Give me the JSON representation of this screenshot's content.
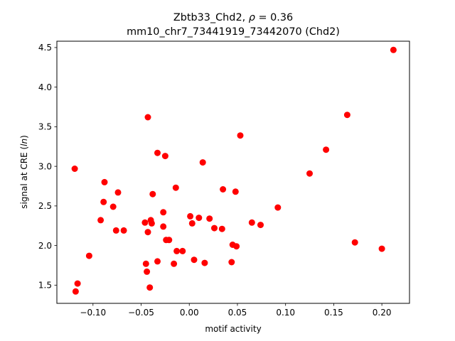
{
  "chart_data": {
    "type": "scatter",
    "title_line1_prefix": "Zbtb33_Chd2, ",
    "title_line1_rho": "ρ",
    "title_line1_suffix": " = 0.36",
    "title_line2": "mm10_chr7_73441919_73442070 (Chd2)",
    "xlabel": "motif activity",
    "ylabel_prefix": "signal at CRE (",
    "ylabel_italic": "ln",
    "ylabel_suffix": ")",
    "xlim": [
      -0.1375,
      0.2287
    ],
    "ylim": [
      1.27,
      4.58
    ],
    "xticks": [
      -0.1,
      -0.05,
      0.0,
      0.05,
      0.1,
      0.15,
      0.2
    ],
    "xtick_labels": [
      "−0.10",
      "−0.05",
      "0.00",
      "0.05",
      "0.10",
      "0.15",
      "0.20"
    ],
    "yticks": [
      1.5,
      2.0,
      2.5,
      3.0,
      3.5,
      4.0,
      4.5
    ],
    "ytick_labels": [
      "1.5",
      "2.0",
      "2.5",
      "3.0",
      "3.5",
      "4.0",
      "4.5"
    ],
    "marker_color": "#ff0000",
    "grid": false,
    "legend": "none",
    "points": [
      {
        "x": -0.119,
        "y": 2.97
      },
      {
        "x": -0.118,
        "y": 1.42
      },
      {
        "x": -0.116,
        "y": 1.52
      },
      {
        "x": -0.104,
        "y": 1.87
      },
      {
        "x": -0.092,
        "y": 2.32
      },
      {
        "x": -0.089,
        "y": 2.55
      },
      {
        "x": -0.088,
        "y": 2.8
      },
      {
        "x": -0.079,
        "y": 2.49
      },
      {
        "x": -0.076,
        "y": 2.19
      },
      {
        "x": -0.074,
        "y": 2.67
      },
      {
        "x": -0.068,
        "y": 2.19
      },
      {
        "x": -0.046,
        "y": 2.29
      },
      {
        "x": -0.045,
        "y": 1.77
      },
      {
        "x": -0.044,
        "y": 1.67
      },
      {
        "x": -0.043,
        "y": 3.62
      },
      {
        "x": -0.043,
        "y": 2.17
      },
      {
        "x": -0.041,
        "y": 1.47
      },
      {
        "x": -0.04,
        "y": 2.32
      },
      {
        "x": -0.039,
        "y": 2.28
      },
      {
        "x": -0.038,
        "y": 2.65
      },
      {
        "x": -0.033,
        "y": 3.17
      },
      {
        "x": -0.033,
        "y": 1.8
      },
      {
        "x": -0.027,
        "y": 2.42
      },
      {
        "x": -0.027,
        "y": 2.24
      },
      {
        "x": -0.025,
        "y": 3.13
      },
      {
        "x": -0.024,
        "y": 2.07
      },
      {
        "x": -0.021,
        "y": 2.07
      },
      {
        "x": -0.016,
        "y": 1.77
      },
      {
        "x": -0.014,
        "y": 2.73
      },
      {
        "x": -0.013,
        "y": 1.93
      },
      {
        "x": -0.007,
        "y": 1.93
      },
      {
        "x": 0.001,
        "y": 2.37
      },
      {
        "x": 0.003,
        "y": 2.28
      },
      {
        "x": 0.005,
        "y": 1.82
      },
      {
        "x": 0.01,
        "y": 2.35
      },
      {
        "x": 0.014,
        "y": 3.05
      },
      {
        "x": 0.016,
        "y": 1.78
      },
      {
        "x": 0.021,
        "y": 2.34
      },
      {
        "x": 0.026,
        "y": 2.22
      },
      {
        "x": 0.034,
        "y": 2.21
      },
      {
        "x": 0.035,
        "y": 2.71
      },
      {
        "x": 0.044,
        "y": 1.79
      },
      {
        "x": 0.045,
        "y": 2.01
      },
      {
        "x": 0.048,
        "y": 2.68
      },
      {
        "x": 0.049,
        "y": 1.99
      },
      {
        "x": 0.053,
        "y": 3.39
      },
      {
        "x": 0.065,
        "y": 2.29
      },
      {
        "x": 0.074,
        "y": 2.26
      },
      {
        "x": 0.092,
        "y": 2.48
      },
      {
        "x": 0.125,
        "y": 2.91
      },
      {
        "x": 0.142,
        "y": 3.21
      },
      {
        "x": 0.164,
        "y": 3.65
      },
      {
        "x": 0.172,
        "y": 2.04
      },
      {
        "x": 0.2,
        "y": 1.96
      },
      {
        "x": 0.212,
        "y": 4.47
      }
    ]
  }
}
